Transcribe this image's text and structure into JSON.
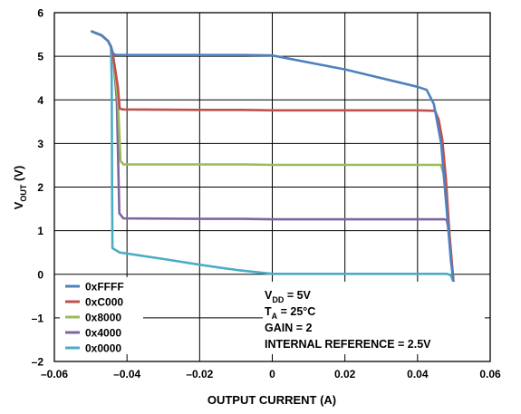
{
  "chart_data": {
    "type": "line",
    "xlabel": "OUTPUT CURRENT (A)",
    "ylabel": {
      "main": "V",
      "sub": "OUT",
      "unit": " (V)"
    },
    "xlim": [
      -0.06,
      0.06
    ],
    "ylim": [
      -2,
      6
    ],
    "x_ticks": [
      "–0.06",
      "–0.04",
      "–0.02",
      "0",
      "0.02",
      "0.04",
      "0.06"
    ],
    "y_ticks": [
      "–2",
      "–1",
      "0",
      "1",
      "2",
      "3",
      "4",
      "5",
      "6"
    ],
    "grid": true,
    "legend_position": "bottom-left",
    "series": [
      {
        "name": "0xFFFF",
        "color": "#4f81bd",
        "points": [
          [
            -0.0497,
            5.57
          ],
          [
            -0.047,
            5.48
          ],
          [
            -0.0452,
            5.35
          ],
          [
            -0.0444,
            5.22
          ],
          [
            -0.0438,
            5.06
          ],
          [
            -0.043,
            5.03
          ],
          [
            -0.02,
            5.03
          ],
          [
            -0.008,
            5.03
          ],
          [
            0,
            5.02
          ],
          [
            0.02,
            4.7
          ],
          [
            0.04,
            4.3
          ],
          [
            0.0425,
            4.23
          ],
          [
            0.0445,
            3.9
          ],
          [
            0.0465,
            3.0
          ],
          [
            0.048,
            1.5
          ],
          [
            0.0492,
            0.3
          ],
          [
            0.0499,
            -0.18
          ]
        ]
      },
      {
        "name": "0xC000",
        "color": "#c0504d",
        "points": [
          [
            -0.0497,
            5.57
          ],
          [
            -0.047,
            5.48
          ],
          [
            -0.0452,
            5.35
          ],
          [
            -0.0444,
            5.22
          ],
          [
            -0.0438,
            5.0
          ],
          [
            -0.0425,
            4.3
          ],
          [
            -0.042,
            3.8
          ],
          [
            -0.041,
            3.78
          ],
          [
            -0.02,
            3.77
          ],
          [
            -0.008,
            3.77
          ],
          [
            0,
            3.76
          ],
          [
            0.02,
            3.76
          ],
          [
            0.04,
            3.76
          ],
          [
            0.0448,
            3.75
          ],
          [
            0.0458,
            3.55
          ],
          [
            0.0468,
            3.1
          ],
          [
            0.0478,
            2.2
          ],
          [
            0.0488,
            0.9
          ],
          [
            0.0499,
            -0.18
          ]
        ]
      },
      {
        "name": "0x8000",
        "color": "#9bbb59",
        "points": [
          [
            -0.0497,
            5.57
          ],
          [
            -0.047,
            5.48
          ],
          [
            -0.0452,
            5.35
          ],
          [
            -0.0444,
            5.22
          ],
          [
            -0.0438,
            5.0
          ],
          [
            -0.0425,
            4.0
          ],
          [
            -0.0418,
            2.6
          ],
          [
            -0.041,
            2.52
          ],
          [
            -0.02,
            2.52
          ],
          [
            -0.008,
            2.52
          ],
          [
            0,
            2.51
          ],
          [
            0.02,
            2.51
          ],
          [
            0.04,
            2.51
          ],
          [
            0.0464,
            2.51
          ],
          [
            0.0472,
            2.3
          ],
          [
            0.048,
            1.7
          ],
          [
            0.0488,
            0.9
          ],
          [
            0.0499,
            -0.18
          ]
        ]
      },
      {
        "name": "0x4000",
        "color": "#8064a2",
        "points": [
          [
            -0.0497,
            5.57
          ],
          [
            -0.047,
            5.48
          ],
          [
            -0.0452,
            5.35
          ],
          [
            -0.0444,
            5.22
          ],
          [
            -0.0438,
            5.0
          ],
          [
            -0.0428,
            4.0
          ],
          [
            -0.0421,
            1.4
          ],
          [
            -0.041,
            1.28
          ],
          [
            -0.02,
            1.27
          ],
          [
            -0.008,
            1.27
          ],
          [
            0,
            1.26
          ],
          [
            0.02,
            1.26
          ],
          [
            0.04,
            1.26
          ],
          [
            0.0474,
            1.26
          ],
          [
            0.048,
            1.25
          ],
          [
            0.0484,
            1.1
          ],
          [
            0.049,
            0.6
          ],
          [
            0.0499,
            -0.18
          ]
        ]
      },
      {
        "name": "0x0000",
        "color": "#4bacc6",
        "points": [
          [
            -0.0497,
            5.57
          ],
          [
            -0.047,
            5.48
          ],
          [
            -0.0452,
            5.35
          ],
          [
            -0.0444,
            5.22
          ],
          [
            -0.0442,
            4.5
          ],
          [
            -0.0441,
            2.0
          ],
          [
            -0.044,
            0.6
          ],
          [
            -0.042,
            0.5
          ],
          [
            -0.03,
            0.35
          ],
          [
            -0.02,
            0.22
          ],
          [
            -0.01,
            0.1
          ],
          [
            0,
            0.01
          ],
          [
            0.02,
            0.01
          ],
          [
            0.04,
            0.01
          ],
          [
            0.048,
            0.01
          ],
          [
            0.0492,
            -0.02
          ],
          [
            0.0499,
            -0.18
          ]
        ]
      }
    ],
    "annotations": [
      {
        "main": "V",
        "sub": "DD",
        "rest": " = 5V"
      },
      {
        "main": "T",
        "sub": "A",
        "rest": " = 25°C"
      },
      {
        "main": "GAIN = 2",
        "sub": "",
        "rest": ""
      },
      {
        "main": "INTERNAL REFERENCE = 2.5V",
        "sub": "",
        "rest": ""
      }
    ]
  }
}
